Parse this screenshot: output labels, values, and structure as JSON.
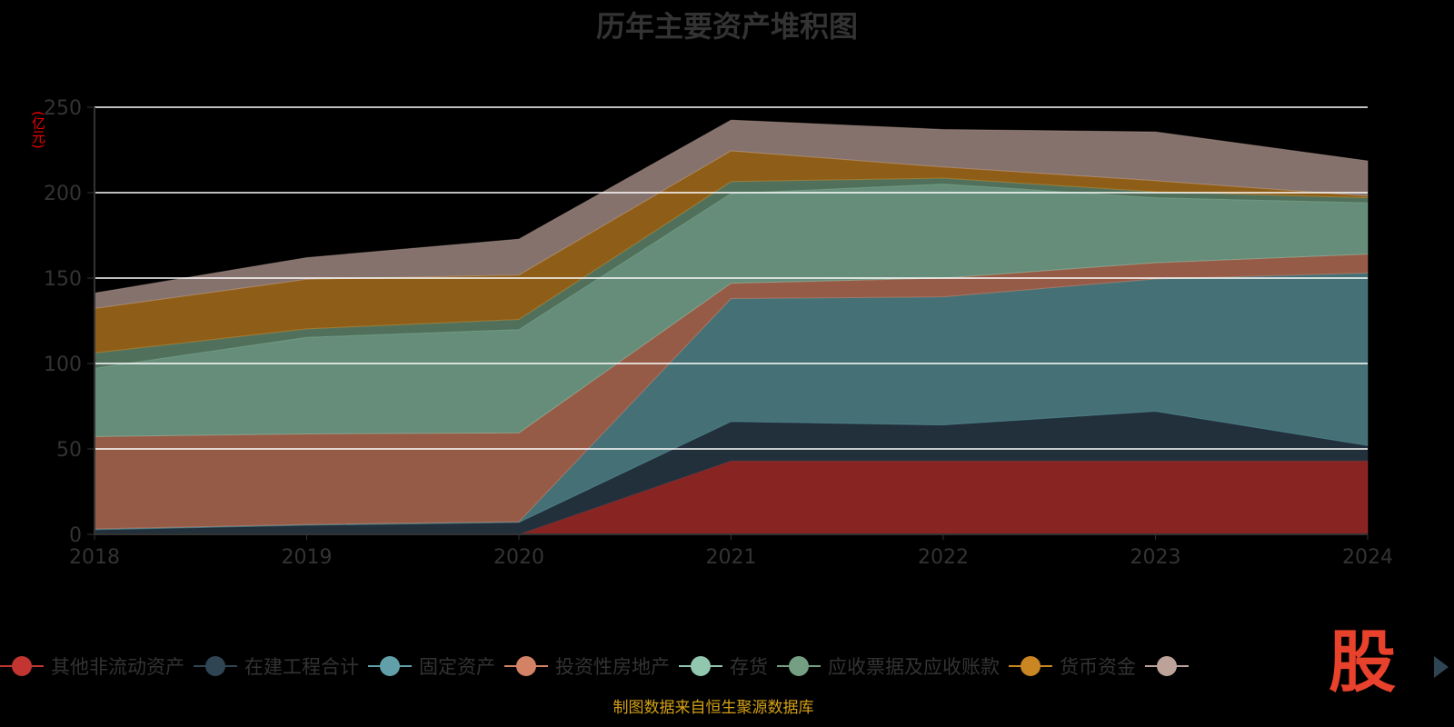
{
  "chart_data": {
    "type": "area",
    "stacked": true,
    "title": "历年主要资产堆积图",
    "ylabel": "(亿元)",
    "xlabel": "",
    "ylim": [
      0,
      250
    ],
    "yticks": [
      "0",
      "50",
      "100",
      "150",
      "200",
      "250"
    ],
    "x": [
      "2018",
      "2019",
      "2020",
      "2021",
      "2022",
      "2023",
      "2024"
    ],
    "grid": true,
    "legend_position": "bottom",
    "series": [
      {
        "name": "其他非流动资产",
        "color": "#c23531",
        "values": [
          0,
          0,
          0,
          43,
          43,
          43,
          43
        ]
      },
      {
        "name": "在建工程合计",
        "color": "#2f4554",
        "values": [
          2.7,
          5.3,
          7,
          23,
          21,
          29,
          9
        ]
      },
      {
        "name": "固定资产",
        "color": "#61a0a8",
        "values": [
          0.5,
          0.5,
          0.4,
          72,
          75,
          77.5,
          101
        ]
      },
      {
        "name": "投资性房地产",
        "color": "#d48265",
        "values": [
          54,
          53,
          52,
          9,
          11,
          9.5,
          11
        ]
      },
      {
        "name": "存货",
        "color": "#91c7ae",
        "values": [
          40,
          56.5,
          60.4,
          52.5,
          55,
          38,
          30
        ]
      },
      {
        "name": "应收票据及应收账款",
        "color": "#749f83",
        "values": [
          9,
          5,
          6,
          7,
          3.5,
          3.5,
          3
        ]
      },
      {
        "name": "货币资金",
        "color": "#ca8622",
        "values": [
          26,
          29,
          26,
          18,
          6.5,
          6.5,
          1
        ]
      },
      {
        "color": "#bda29a",
        "values": [
          9,
          12.7,
          21,
          18,
          22,
          28.6,
          20.6
        ]
      }
    ]
  },
  "source": "制图数据来自恒生聚源数据库",
  "logo_text": "股",
  "icons": {
    "pager": "chevron-right-icon"
  }
}
